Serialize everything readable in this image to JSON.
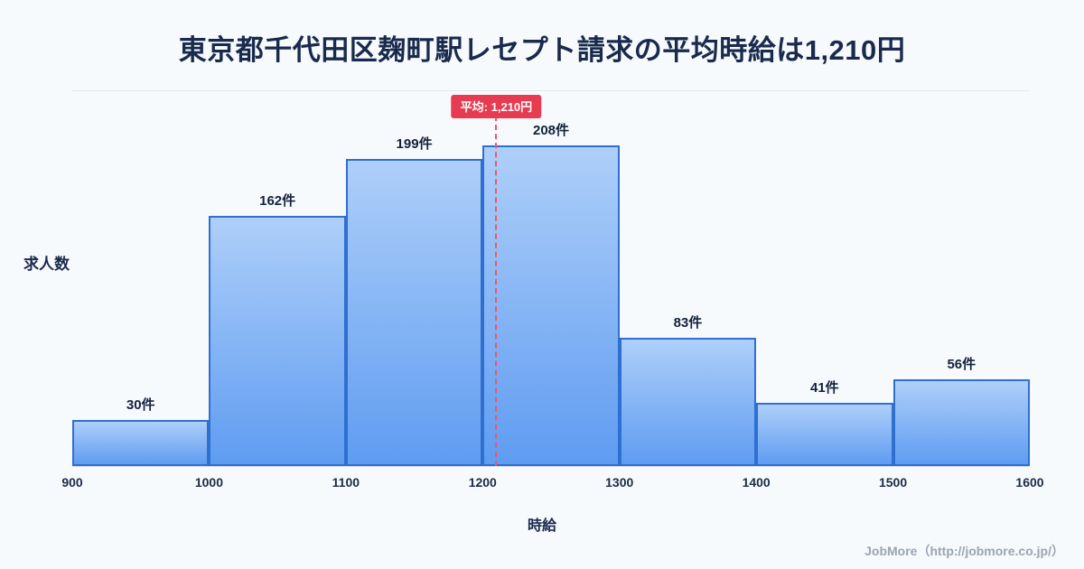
{
  "page": {
    "title": "東京都千代田区麹町駅レセプト請求の平均時給は1,210円",
    "footer": "JobMore（http://jobmore.co.jp/）"
  },
  "chart_data": {
    "type": "bar",
    "subtype": "histogram",
    "title": "東京都千代田区麹町駅レセプト請求の平均時給は1,210円",
    "xlabel": "時給",
    "ylabel": "求人数",
    "bin_edges": [
      900,
      1000,
      1100,
      1200,
      1300,
      1400,
      1500,
      1600
    ],
    "values": [
      30,
      162,
      199,
      208,
      83,
      41,
      56
    ],
    "labels": [
      "30件",
      "162件",
      "199件",
      "208件",
      "83件",
      "41件",
      "56件"
    ],
    "average": {
      "value": 1210,
      "label": "平均: 1,210円"
    },
    "xlim": [
      900,
      1600
    ],
    "ylim": [
      0,
      243
    ],
    "grid": false,
    "legend": "none",
    "colors": {
      "background": "#f7fafd",
      "bar_fill_top": "#aecff9",
      "bar_fill_bottom": "#5f9cf1",
      "bar_border": "#2f6fd0",
      "average_line": "#f2556a",
      "average_badge_bg": "#e73b52",
      "title_text": "#1a2a4d",
      "footer_text": "#9aa4b0"
    }
  }
}
